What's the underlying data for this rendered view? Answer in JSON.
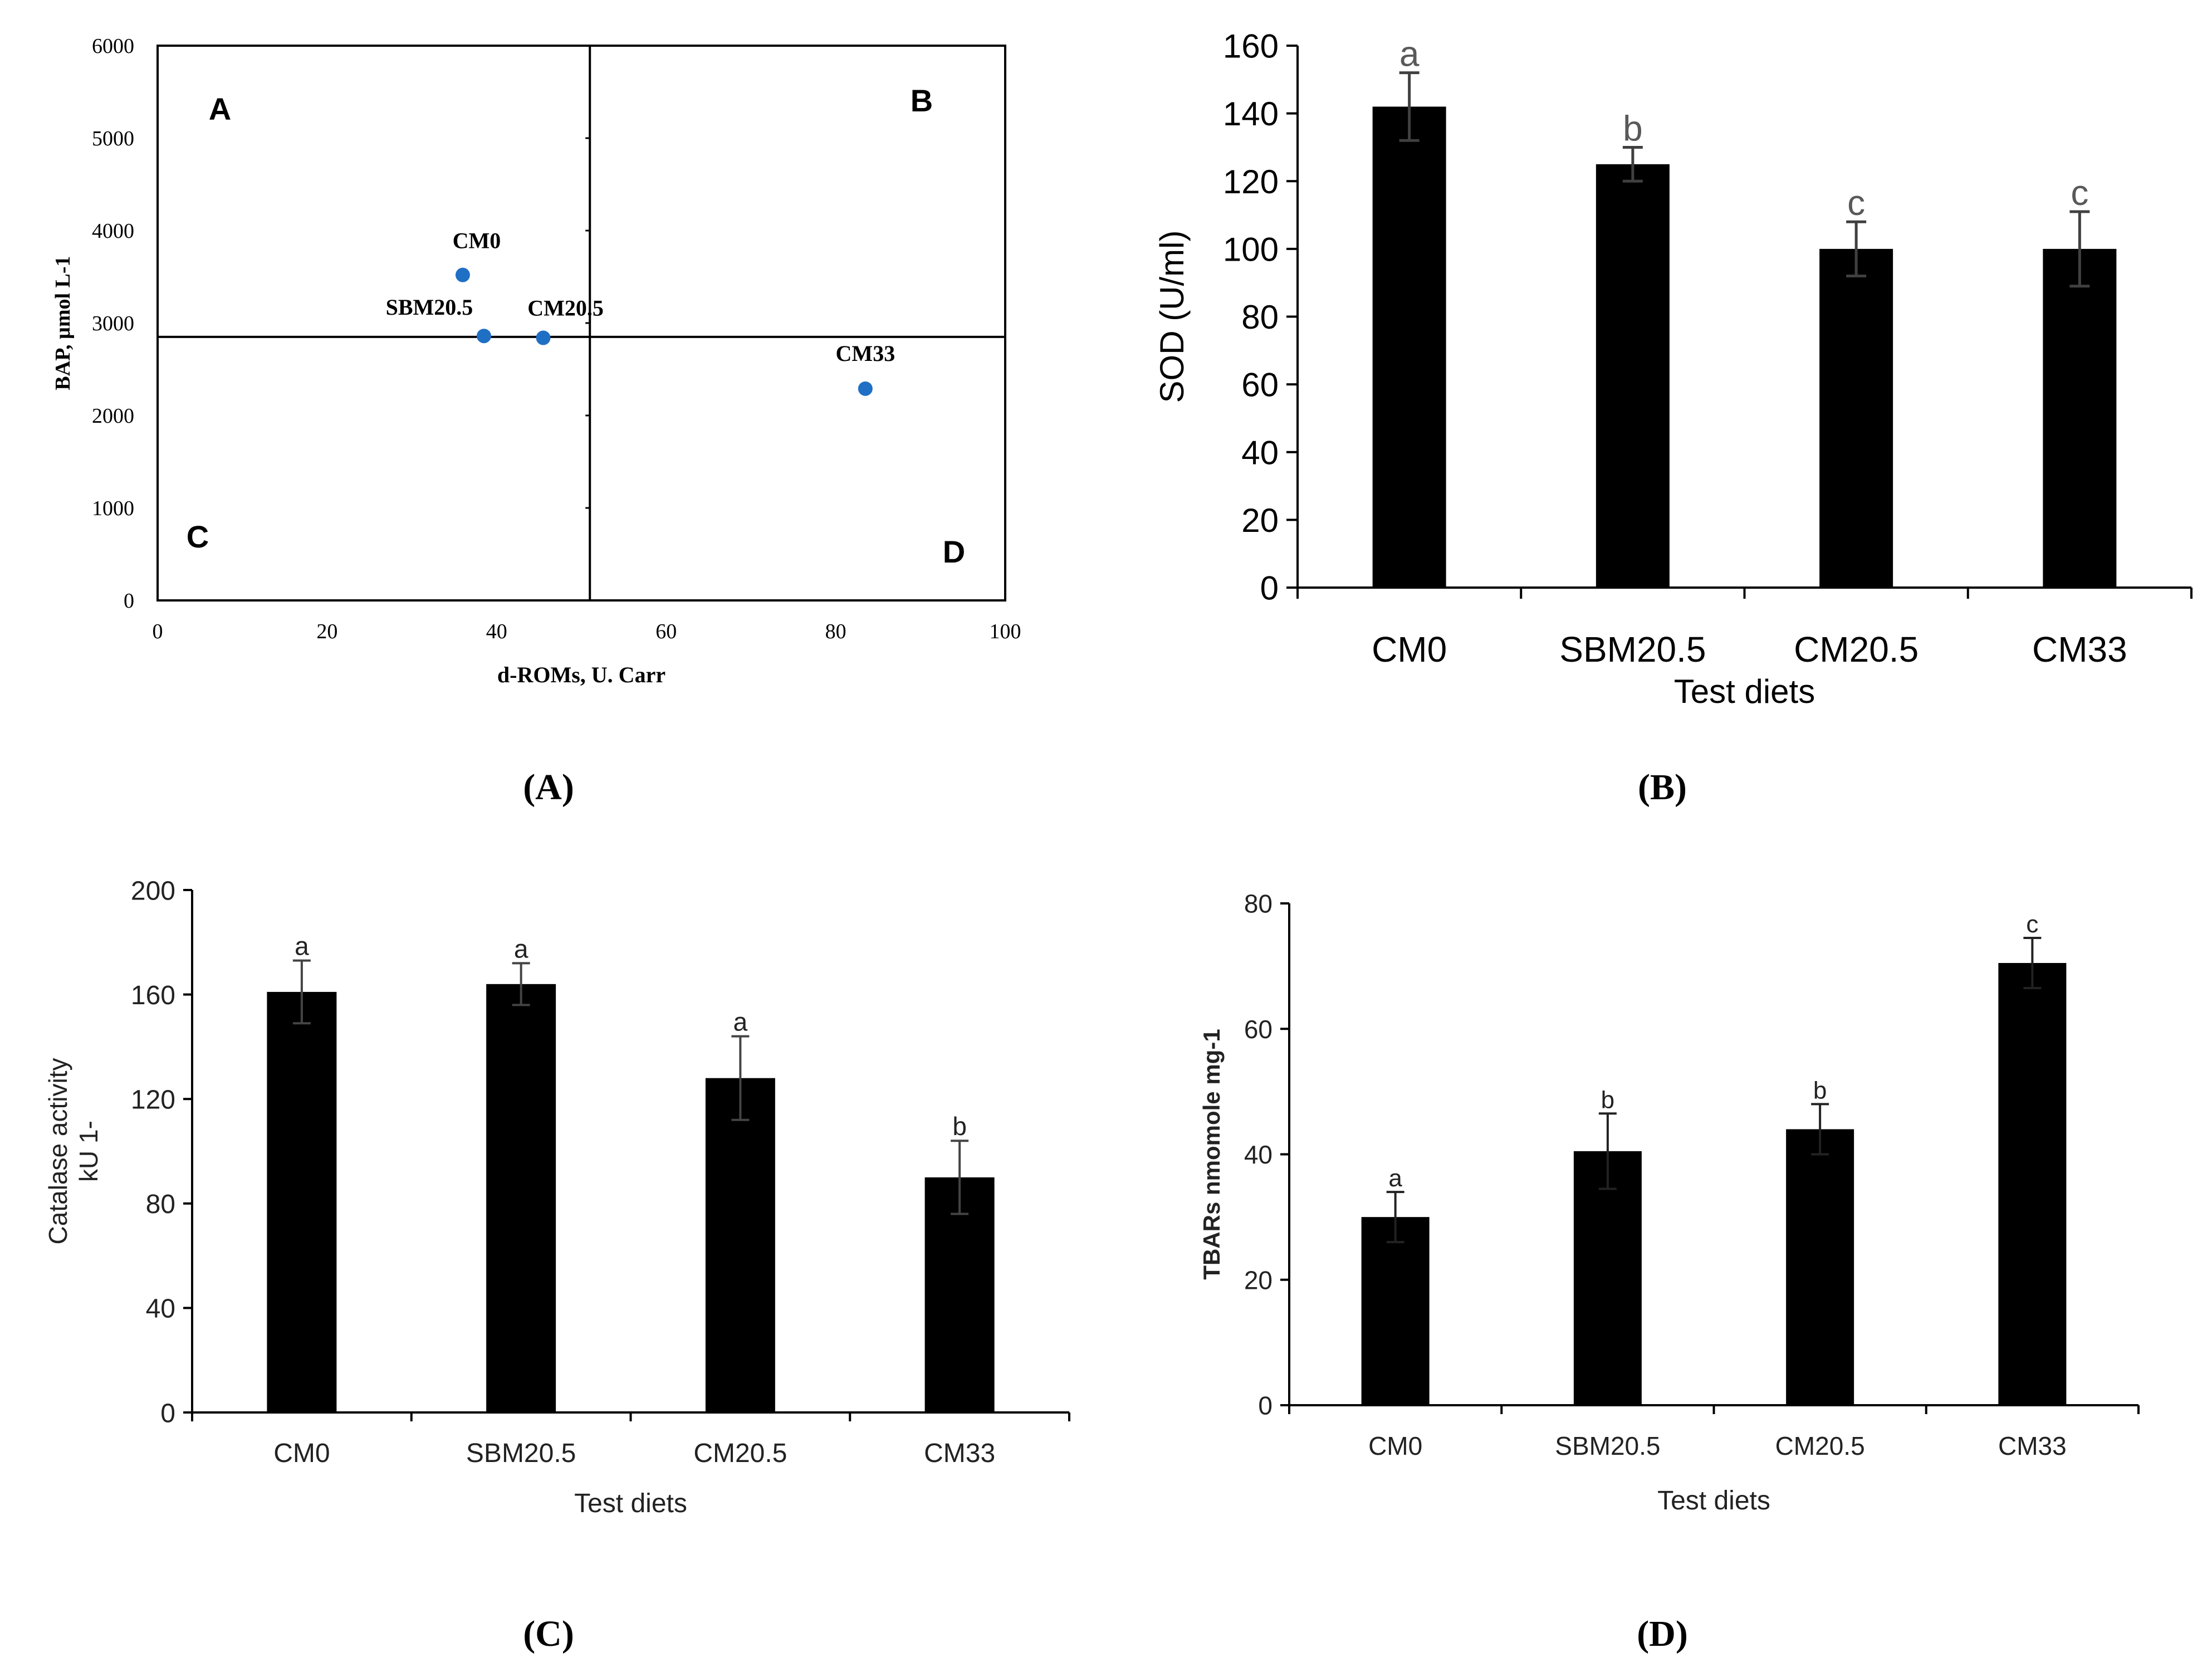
{
  "panel_labels": [
    "(A)",
    "(B)",
    "(C)",
    "(D)"
  ],
  "colors": {
    "bar": "#000000",
    "point": "#1f6fc5",
    "axis": "#000000",
    "letter_b": "#595959"
  },
  "chart_data": [
    {
      "id": "A",
      "type": "scatter",
      "xlabel": "d-ROMs, U. Carr",
      "ylabel": "BAP, µmol L-1",
      "xlim": [
        0,
        100
      ],
      "ylim": [
        0,
        6000
      ],
      "xticks": [
        0,
        20,
        40,
        60,
        80,
        100
      ],
      "yticks": [
        0,
        1000,
        2000,
        3000,
        4000,
        5000,
        6000
      ],
      "divider_x": 51,
      "divider_y": 2850,
      "quadrants": [
        "A",
        "B",
        "C",
        "D"
      ],
      "points": [
        {
          "label": "CM0",
          "x": 36,
          "y": 3520
        },
        {
          "label": "SBM20.5",
          "x": 38.5,
          "y": 2860
        },
        {
          "label": "CM20.5",
          "x": 45.5,
          "y": 2840
        },
        {
          "label": "CM33",
          "x": 83.5,
          "y": 2290
        }
      ]
    },
    {
      "id": "B",
      "type": "bar",
      "xlabel": "Test diets",
      "ylabel": "SOD  (U/ml)",
      "categories": [
        "CM0",
        "SBM20.5",
        "CM20.5",
        "CM33"
      ],
      "values": [
        142,
        125,
        100,
        100
      ],
      "errors": [
        10,
        5,
        8,
        11
      ],
      "letters": [
        "a",
        "b",
        "c",
        "c"
      ],
      "ylim": [
        0,
        160
      ],
      "yticks": [
        0,
        20,
        40,
        60,
        80,
        100,
        120,
        140,
        160
      ]
    },
    {
      "id": "C",
      "type": "bar",
      "xlabel": "Test diets",
      "ylabel_line1": "Catalase activity",
      "ylabel_line2": "kU 1-",
      "categories": [
        "CM0",
        "SBM20.5",
        "CM20.5",
        "CM33"
      ],
      "values": [
        161,
        164,
        128,
        90
      ],
      "errors": [
        12,
        8,
        16,
        14
      ],
      "letters": [
        "a",
        "a",
        "a",
        "b"
      ],
      "ylim": [
        0,
        200
      ],
      "yticks": [
        0,
        40,
        80,
        120,
        160,
        200
      ]
    },
    {
      "id": "D",
      "type": "bar",
      "xlabel": "Test diets",
      "ylabel": "TBARs  nmomole mg-1",
      "categories": [
        "CM0",
        "SBM20.5",
        "CM20.5",
        "CM33"
      ],
      "values": [
        30,
        40.5,
        44,
        70.5
      ],
      "errors": [
        4,
        6,
        4,
        4
      ],
      "letters": [
        "a",
        "b",
        "b",
        "c"
      ],
      "ylim": [
        0,
        80
      ],
      "yticks": [
        0,
        20,
        40,
        60,
        80
      ]
    }
  ]
}
